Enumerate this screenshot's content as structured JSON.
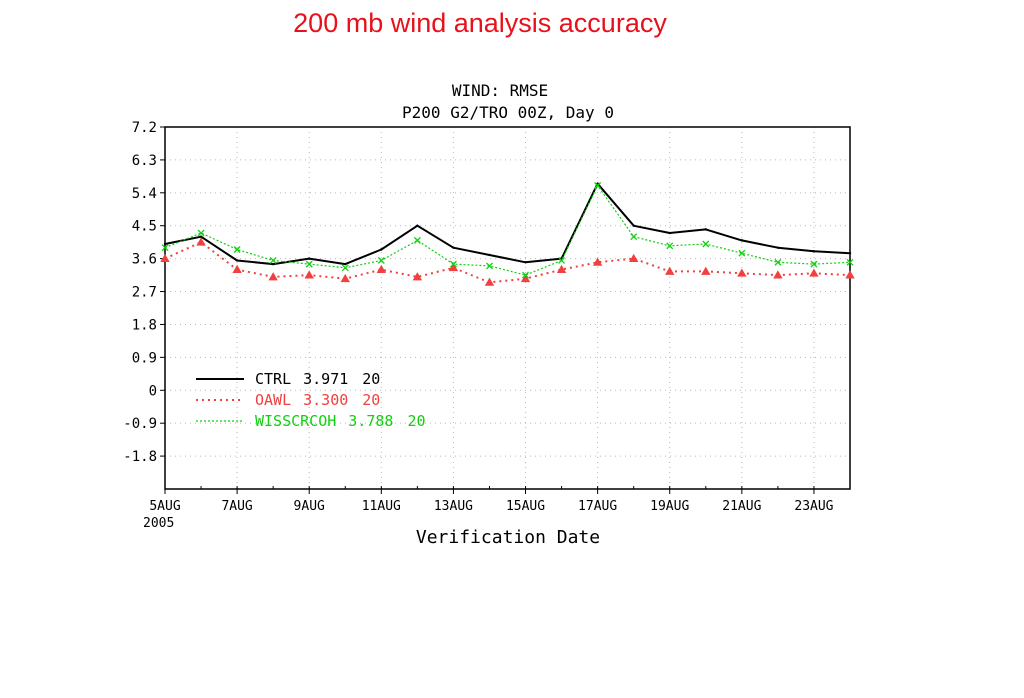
{
  "slide": {
    "title": "200 mb wind analysis accuracy"
  },
  "chart_data": {
    "type": "line",
    "title": "WIND: RMSE",
    "subtitle": "P200 G2/TRO 00Z, Day 0",
    "xlabel": "Verification Date",
    "ylabel": "",
    "x_year_label": "2005",
    "x": [
      5,
      6,
      7,
      8,
      9,
      10,
      11,
      12,
      13,
      14,
      15,
      16,
      17,
      18,
      19,
      20,
      21,
      22,
      23,
      24
    ],
    "xlim": [
      5,
      24
    ],
    "x_ticks": [
      {
        "x": 5,
        "label": "5AUG"
      },
      {
        "x": 7,
        "label": "7AUG"
      },
      {
        "x": 9,
        "label": "9AUG"
      },
      {
        "x": 11,
        "label": "11AUG"
      },
      {
        "x": 13,
        "label": "13AUG"
      },
      {
        "x": 15,
        "label": "15AUG"
      },
      {
        "x": 17,
        "label": "17AUG"
      },
      {
        "x": 19,
        "label": "19AUG"
      },
      {
        "x": 21,
        "label": "21AUG"
      },
      {
        "x": 23,
        "label": "23AUG"
      }
    ],
    "ylim": [
      -2.7,
      7.2
    ],
    "y_ticks": [
      "7.2",
      "6.3",
      "5.4",
      "4.5",
      "3.6",
      "2.7",
      "1.8",
      "0.9",
      "0",
      "-0.9",
      "-1.8"
    ],
    "y_tick_values": [
      7.2,
      6.3,
      5.4,
      4.5,
      3.6,
      2.7,
      1.8,
      0.9,
      0,
      -0.9,
      -1.8
    ],
    "grid": true,
    "legend_position": "lower-left",
    "series": [
      {
        "name": "CTRL",
        "mean": "3.971",
        "count": "20",
        "color": "#000000",
        "style": "solid",
        "marker": "none",
        "values": [
          4.0,
          4.2,
          3.55,
          3.45,
          3.6,
          3.45,
          3.85,
          4.5,
          3.9,
          3.7,
          3.5,
          3.6,
          5.65,
          4.5,
          4.3,
          4.4,
          4.1,
          3.9,
          3.8,
          3.75
        ]
      },
      {
        "name": "OAWL",
        "mean": "3.300",
        "count": "20",
        "color": "#f04040",
        "style": "dotted",
        "marker": "triangle",
        "values": [
          3.6,
          4.05,
          3.3,
          3.1,
          3.15,
          3.05,
          3.3,
          3.1,
          3.35,
          2.95,
          3.05,
          3.3,
          3.5,
          3.6,
          3.25,
          3.25,
          3.2,
          3.15,
          3.2,
          3.15
        ]
      },
      {
        "name": "WISSCRCOH",
        "mean": "3.788",
        "count": "20",
        "color": "#10d010",
        "style": "dashed-fine",
        "marker": "x",
        "values": [
          3.9,
          4.3,
          3.85,
          3.55,
          3.45,
          3.35,
          3.55,
          4.1,
          3.45,
          3.4,
          3.15,
          3.55,
          5.6,
          4.2,
          3.95,
          4.0,
          3.75,
          3.5,
          3.45,
          3.5
        ]
      }
    ]
  }
}
